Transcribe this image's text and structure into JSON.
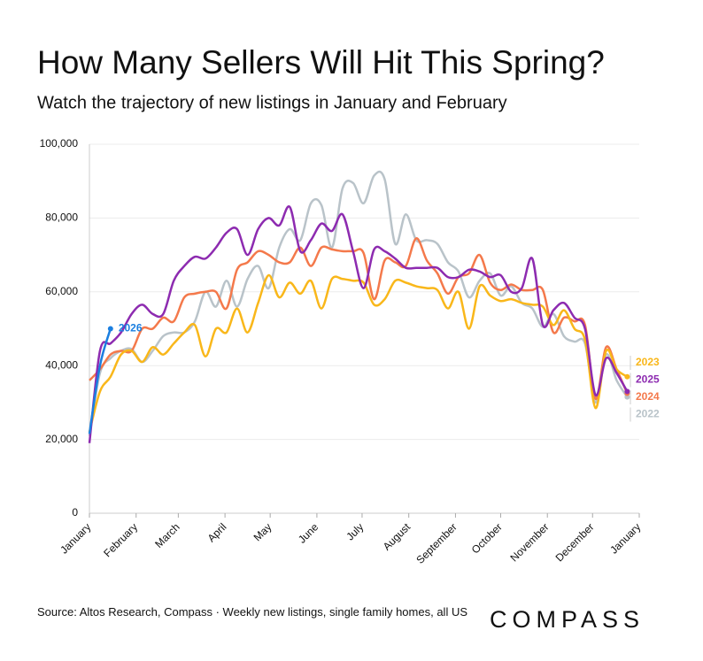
{
  "chart_data": {
    "type": "line",
    "title": "How Many Sellers Will Hit This Spring?",
    "subtitle": "Watch the trajectory of new listings in January and February",
    "source": "Source: Altos Research, Compass · Weekly new listings, single family homes, all US",
    "logo": "COMPASS",
    "x": [
      0,
      7,
      14,
      21,
      28,
      35,
      42,
      49,
      56,
      63,
      70,
      77,
      84,
      91,
      98,
      105,
      112,
      119,
      126,
      133,
      140,
      147,
      154,
      161,
      168,
      175,
      182,
      189,
      196,
      203,
      210,
      217,
      224,
      231,
      238,
      245,
      252,
      259,
      266,
      273,
      280,
      287,
      294,
      301,
      308,
      315,
      322,
      329,
      336,
      343,
      350,
      357
    ],
    "xlim": [
      0,
      365
    ],
    "xticks": [
      {
        "value": 0,
        "label": "January"
      },
      {
        "value": 31,
        "label": "February"
      },
      {
        "value": 59,
        "label": "March"
      },
      {
        "value": 90,
        "label": "April"
      },
      {
        "value": 120,
        "label": "May"
      },
      {
        "value": 151,
        "label": "June"
      },
      {
        "value": 181,
        "label": "July"
      },
      {
        "value": 212,
        "label": "August"
      },
      {
        "value": 243,
        "label": "September"
      },
      {
        "value": 273,
        "label": "October"
      },
      {
        "value": 304,
        "label": "November"
      },
      {
        "value": 334,
        "label": "December"
      },
      {
        "value": 365,
        "label": "January"
      }
    ],
    "ylim": [
      0,
      100000
    ],
    "yticks": [
      0,
      {
        "value": 20000,
        "label": "20,000"
      },
      {
        "value": 40000,
        "label": "40,000"
      },
      {
        "value": 60000,
        "label": "60,000"
      },
      {
        "value": 80000,
        "label": "80,000"
      },
      {
        "value": 100000,
        "label": "100,000"
      }
    ],
    "grid": true,
    "series": [
      {
        "name": "2022",
        "color": "#b9c3c9",
        "values": [
          21000,
          38000,
          42000,
          44000,
          44500,
          41000,
          44000,
          48000,
          49000,
          49000,
          52000,
          60000,
          56000,
          63000,
          56000,
          63500,
          67000,
          61000,
          72000,
          77000,
          74000,
          84000,
          83500,
          72000,
          88000,
          89500,
          84000,
          91500,
          90500,
          73000,
          81000,
          74000,
          74000,
          73000,
          68000,
          65500,
          58500,
          63000,
          65000,
          59000,
          61500,
          57000,
          55500,
          50500,
          54000,
          48000,
          46500,
          46000,
          30000,
          43000,
          36000,
          31500
        ]
      },
      {
        "name": "2024",
        "color": "#f4794b",
        "values": [
          36000,
          39000,
          43000,
          44000,
          44000,
          50000,
          50000,
          53000,
          52000,
          58500,
          59500,
          60000,
          60000,
          55500,
          66000,
          68000,
          71000,
          70000,
          68000,
          68000,
          72000,
          67000,
          72000,
          71500,
          71000,
          71000,
          70500,
          58000,
          68500,
          68000,
          67000,
          74500,
          68500,
          65000,
          59500,
          64000,
          65000,
          70000,
          62500,
          60500,
          62000,
          60500,
          60500,
          60500,
          49000,
          53000,
          52000,
          51000,
          31000,
          45000,
          39000,
          32500
        ]
      },
      {
        "name": "2023",
        "color": "#f9b71a",
        "values": [
          22000,
          33000,
          37000,
          43000,
          44000,
          41000,
          45000,
          43000,
          46000,
          49000,
          51000,
          42500,
          50000,
          49000,
          55500,
          49000,
          57000,
          64500,
          58500,
          62500,
          59500,
          63000,
          55500,
          63500,
          63500,
          63000,
          62500,
          56500,
          58000,
          63000,
          62500,
          61500,
          61000,
          60500,
          55500,
          60000,
          50000,
          61500,
          59000,
          57500,
          58000,
          57000,
          56500,
          56000,
          51000,
          55000,
          50000,
          47000,
          28500,
          44000,
          39000,
          37000
        ]
      },
      {
        "name": "2025",
        "color": "#8d2bb0",
        "values": [
          19000,
          44000,
          46000,
          49000,
          54000,
          56500,
          54000,
          54000,
          63000,
          67000,
          69500,
          69000,
          72000,
          76000,
          77000,
          70000,
          77000,
          80000,
          78000,
          83000,
          71000,
          74000,
          78500,
          76500,
          81000,
          71000,
          61000,
          71500,
          71000,
          69000,
          66500,
          66500,
          66500,
          66500,
          64000,
          64000,
          66000,
          65500,
          64000,
          64500,
          60000,
          61000,
          69000,
          51000,
          55000,
          57000,
          53000,
          50000,
          32000,
          42000,
          38000,
          33000
        ]
      },
      {
        "name": "2026",
        "color": "#1b7fe0",
        "values": [
          21500,
          40000,
          50000,
          null,
          null,
          null,
          null,
          null,
          null,
          null,
          null,
          null,
          null,
          null,
          null,
          null,
          null,
          null,
          null,
          null,
          null,
          null,
          null,
          null,
          null,
          null,
          null,
          null,
          null,
          null,
          null,
          null,
          null,
          null,
          null,
          null,
          null,
          null,
          null,
          null,
          null,
          null,
          null,
          null,
          null,
          null,
          null,
          null,
          null,
          null,
          null,
          null
        ]
      }
    ]
  }
}
